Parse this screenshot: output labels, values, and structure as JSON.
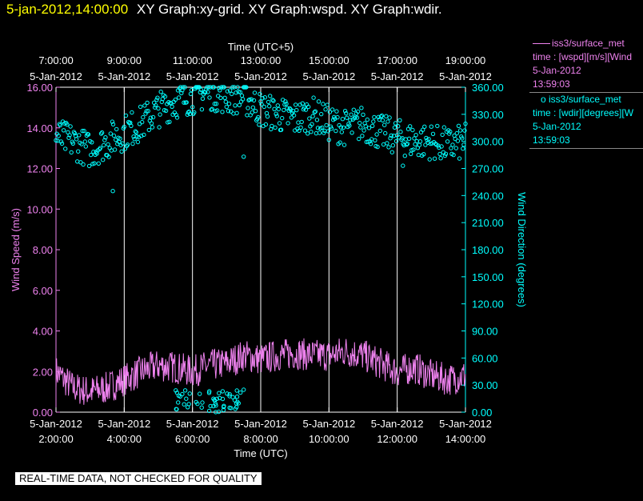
{
  "header": {
    "datetime": "5-jan-2012,14:00:00",
    "graphs": "XY Graph:xy-grid.  XY Graph:wspd.  XY Graph:wdir."
  },
  "legend": {
    "wspd": {
      "name": "iss3/surface_met",
      "desc": "time : [wspd][m/s][Wind",
      "date": "5-Jan-2012",
      "time": "13:59:03"
    },
    "wdir": {
      "name": "iss3/surface_met",
      "desc": "time : [wdir][degrees][W",
      "date": "5-Jan-2012",
      "time": "13:59:03"
    }
  },
  "notice": "REAL-TIME DATA, NOT CHECKED FOR QUALITY",
  "colors": {
    "wspd": "#ee82ee",
    "wdir": "#00ffff",
    "grid": "#ffffff",
    "header_date": "#ffff00"
  },
  "chart_data": {
    "type": "line+scatter",
    "top_axis": {
      "label": "Time (UTC+5)",
      "ticks": [
        {
          "at": "2:00",
          "time": "7:00:00",
          "date": "5-Jan-2012"
        },
        {
          "at": "4:00",
          "time": "9:00:00",
          "date": "5-Jan-2012"
        },
        {
          "at": "6:00",
          "time": "11:00:00",
          "date": "5-Jan-2012"
        },
        {
          "at": "8:00",
          "time": "13:00:00",
          "date": "5-Jan-2012"
        },
        {
          "at": "10:00",
          "time": "15:00:00",
          "date": "5-Jan-2012"
        },
        {
          "at": "12:00",
          "time": "17:00:00",
          "date": "5-Jan-2012"
        },
        {
          "at": "14:00",
          "time": "19:00:00",
          "date": "5-Jan-2012"
        }
      ]
    },
    "bottom_axis": {
      "label": "Time (UTC)",
      "xlim": [
        "2:00",
        "14:00"
      ],
      "ticks": [
        {
          "at": "2:00",
          "date": "5-Jan-2012",
          "time": "2:00:00"
        },
        {
          "at": "4:00",
          "date": "5-Jan-2012",
          "time": "4:00:00"
        },
        {
          "at": "6:00",
          "date": "5-Jan-2012",
          "time": "6:00:00"
        },
        {
          "at": "8:00",
          "date": "5-Jan-2012",
          "time": "8:00:00"
        },
        {
          "at": "10:00",
          "date": "5-Jan-2012",
          "time": "10:00:00"
        },
        {
          "at": "12:00",
          "date": "5-Jan-2012",
          "time": "12:00:00"
        },
        {
          "at": "14:00",
          "date": "5-Jan-2012",
          "time": "14:00:00"
        }
      ]
    },
    "left_axis": {
      "label": "Wind Speed (m/s)",
      "ylim": [
        0,
        16
      ],
      "ticks": [
        "0.00",
        "2.00",
        "4.00",
        "6.00",
        "8.00",
        "10.00",
        "12.00",
        "14.00",
        "16.00"
      ]
    },
    "right_axis": {
      "label": "Wind Direction (degrees)",
      "ylim": [
        0,
        360
      ],
      "ticks": [
        "0.00",
        "30.00",
        "60.00",
        "90.00",
        "120.00",
        "150.00",
        "180.00",
        "210.00",
        "240.00",
        "270.00",
        "300.00",
        "330.00",
        "360.00"
      ]
    },
    "grid": "vertical",
    "series": [
      {
        "name": "iss3/surface_met",
        "axis": "left",
        "style": "line",
        "x": [
          "2:00",
          "2:30",
          "3:00",
          "3:30",
          "4:00",
          "4:30",
          "5:00",
          "5:30",
          "6:00",
          "6:30",
          "7:00",
          "7:30",
          "8:00",
          "8:30",
          "9:00",
          "9:30",
          "10:00",
          "10:30",
          "11:00",
          "11:30",
          "12:00",
          "12:30",
          "13:00",
          "13:30",
          "14:00"
        ],
        "y": [
          2.0,
          1.2,
          1.0,
          1.2,
          1.6,
          2.0,
          2.3,
          2.2,
          2.0,
          2.3,
          2.4,
          2.8,
          2.6,
          2.8,
          2.9,
          2.8,
          2.8,
          3.0,
          2.8,
          2.4,
          2.0,
          2.2,
          1.8,
          1.6,
          1.8
        ]
      },
      {
        "name": "iss3/surface_met",
        "axis": "right",
        "style": "markers",
        "x": [
          "2:00",
          "2:30",
          "3:00",
          "3:30",
          "4:00",
          "4:30",
          "5:00",
          "5:30",
          "6:00",
          "6:30",
          "7:00",
          "7:30",
          "8:00",
          "8:30",
          "9:00",
          "9:30",
          "10:00",
          "10:30",
          "11:00",
          "11:30",
          "12:00",
          "12:30",
          "13:00",
          "13:30",
          "14:00"
        ],
        "y": [
          305,
          300,
          290,
          300,
          310,
          320,
          335,
          345,
          350,
          355,
          350,
          350,
          335,
          330,
          325,
          330,
          320,
          315,
          320,
          310,
          305,
          300,
          300,
          295,
          300
        ],
        "outliers": [
          {
            "x": "3:40",
            "y": 245
          },
          {
            "x": "7:30",
            "y": 283
          },
          {
            "x": "12:10",
            "y": 273
          }
        ],
        "low_cluster": {
          "x_range": [
            "5:30",
            "7:30"
          ],
          "y_range": [
            0,
            25
          ]
        }
      }
    ]
  }
}
